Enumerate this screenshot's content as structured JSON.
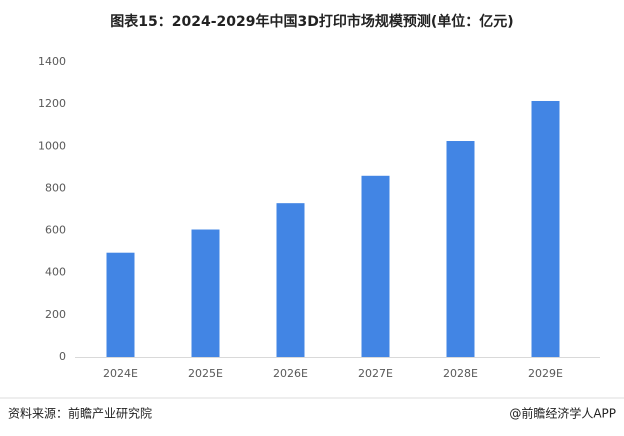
{
  "chart_data": {
    "type": "bar",
    "title": "图表15：2024-2029年中国3D打印市场规模预测(单位：亿元)",
    "categories": [
      "2024E",
      "2025E",
      "2026E",
      "2027E",
      "2028E",
      "2029E"
    ],
    "values": [
      495,
      605,
      730,
      860,
      1025,
      1215
    ],
    "color": "#4285e4",
    "ylim": [
      0,
      1400
    ],
    "yticks": [
      0,
      200,
      400,
      600,
      800,
      1000,
      1200,
      1400
    ],
    "grid": false,
    "source": "资料来源：前瞻产业研究院",
    "credit": "@前瞻经济学人APP"
  }
}
